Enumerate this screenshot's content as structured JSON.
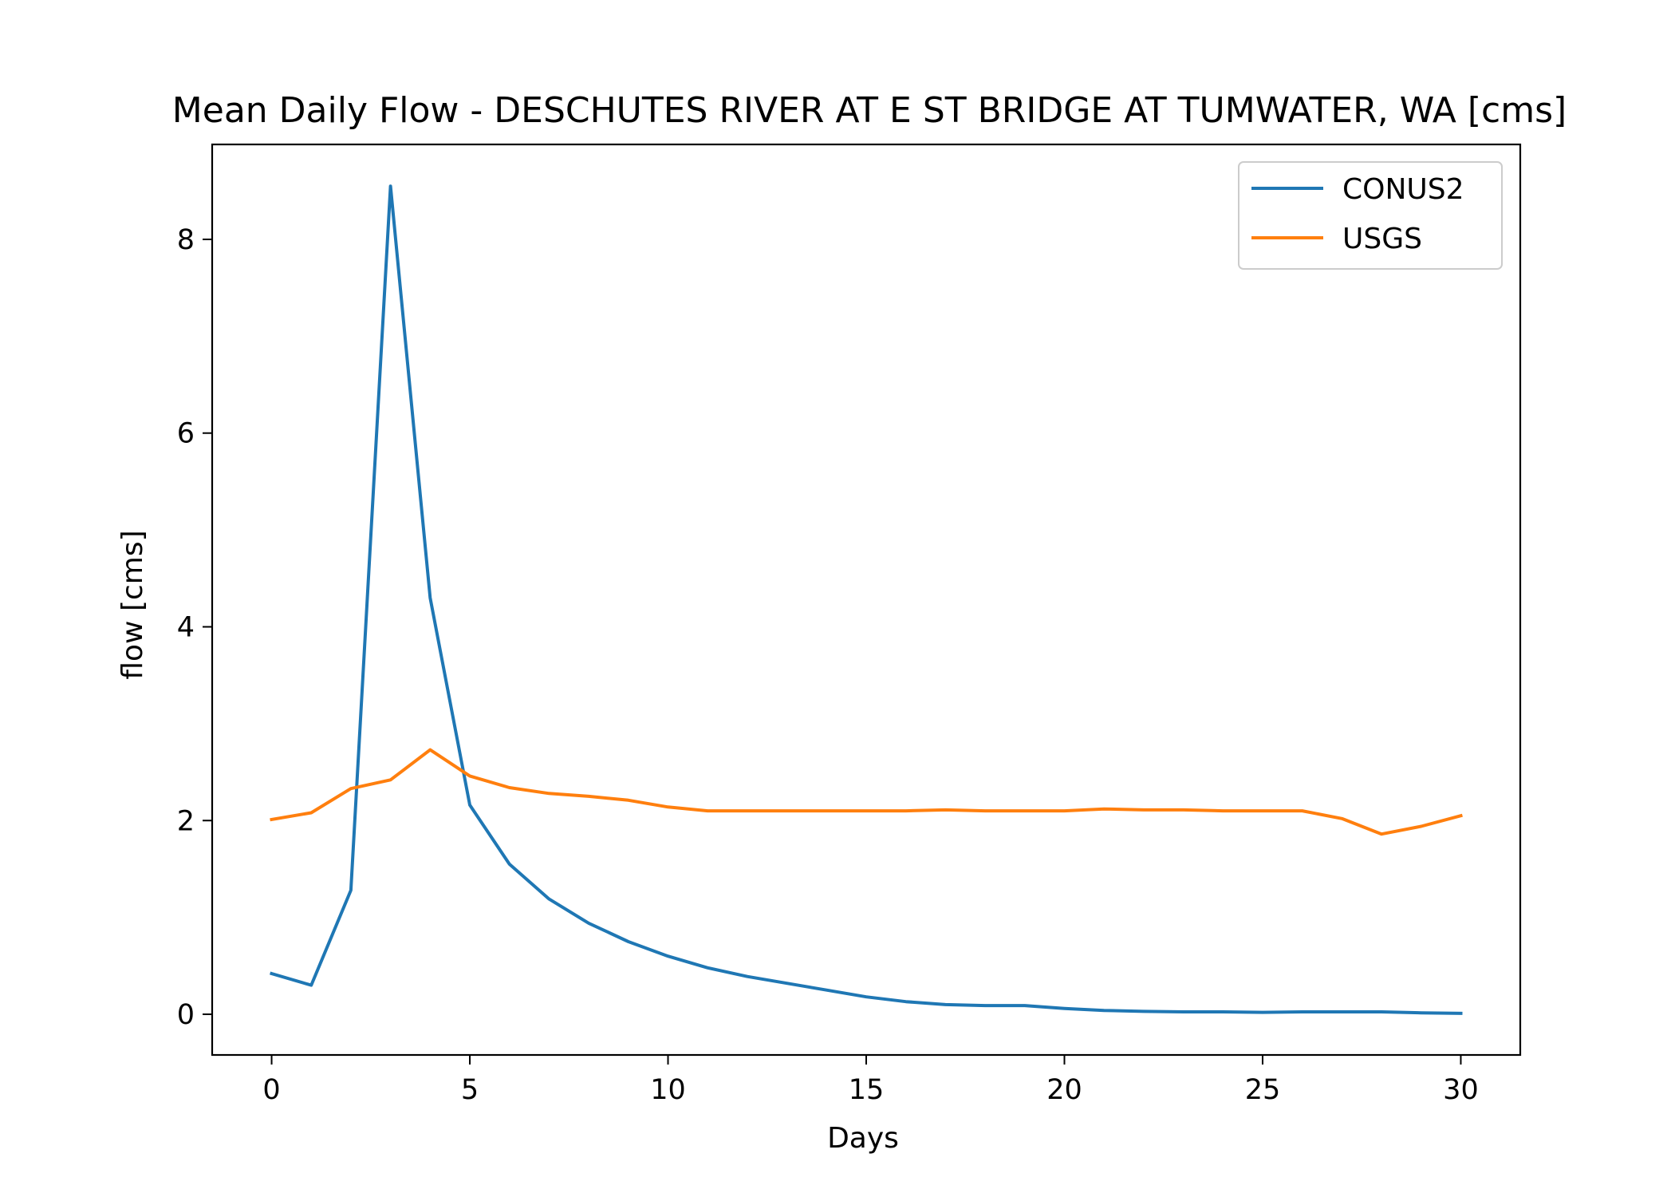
{
  "chart_data": {
    "type": "line",
    "title": "Mean Daily Flow - DESCHUTES RIVER AT E ST BRIDGE AT TUMWATER, WA [cms]",
    "xlabel": "Days",
    "ylabel": "flow [cms]",
    "xlim": [
      -1.5,
      31.5
    ],
    "ylim": [
      -0.42,
      8.98
    ],
    "xticks": [
      0,
      5,
      10,
      15,
      20,
      25,
      30
    ],
    "yticks": [
      0,
      2,
      4,
      6,
      8
    ],
    "grid": false,
    "legend_position": "top-right",
    "x": [
      0,
      1,
      2,
      3,
      4,
      5,
      6,
      7,
      8,
      9,
      10,
      11,
      12,
      13,
      14,
      15,
      16,
      17,
      18,
      19,
      20,
      21,
      22,
      23,
      24,
      25,
      26,
      27,
      28,
      29,
      30
    ],
    "series": [
      {
        "name": "CONUS2",
        "color": "#1f77b4",
        "values": [
          0.42,
          0.3,
          1.28,
          8.55,
          4.3,
          2.16,
          1.55,
          1.19,
          0.94,
          0.75,
          0.6,
          0.48,
          0.39,
          0.32,
          0.25,
          0.18,
          0.13,
          0.1,
          0.09,
          0.09,
          0.06,
          0.04,
          0.03,
          0.025,
          0.025,
          0.02,
          0.025,
          0.025,
          0.025,
          0.015,
          0.01
        ]
      },
      {
        "name": "USGS",
        "color": "#ff7f0e",
        "values": [
          2.01,
          2.08,
          2.33,
          2.42,
          2.73,
          2.46,
          2.34,
          2.28,
          2.25,
          2.21,
          2.14,
          2.1,
          2.1,
          2.1,
          2.1,
          2.1,
          2.1,
          2.11,
          2.1,
          2.1,
          2.1,
          2.12,
          2.11,
          2.11,
          2.1,
          2.1,
          2.1,
          2.02,
          1.86,
          1.94,
          2.05
        ]
      }
    ]
  }
}
